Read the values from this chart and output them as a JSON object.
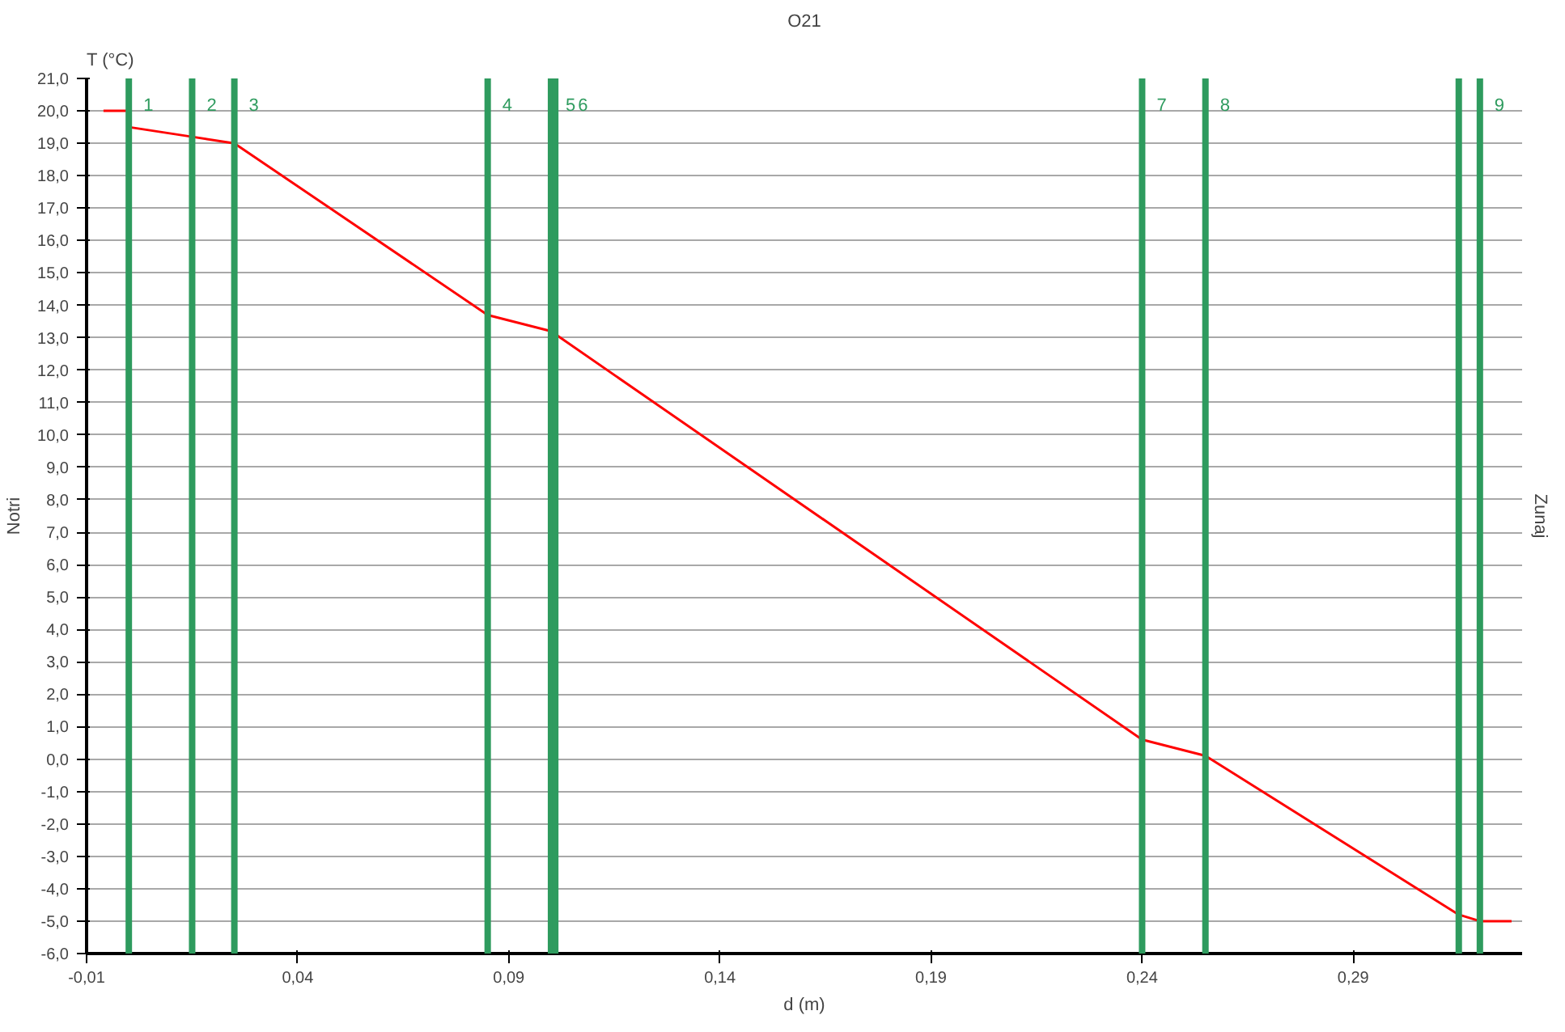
{
  "chart_data": {
    "type": "line",
    "title": "O21",
    "xlabel": "d (m)",
    "ylabel": "T (°C)",
    "x": [
      -0.006,
      0.0,
      0.0,
      0.015,
      0.025,
      0.085,
      0.1,
      0.24,
      0.255,
      0.315,
      0.32,
      0.3275
    ],
    "series": [
      {
        "color": "#ff0000",
        "values": [
          20.0,
          20.0,
          19.5,
          19.2,
          19.0,
          13.7,
          13.2,
          0.6,
          0.1,
          -4.8,
          -5.0,
          -5.0
        ]
      }
    ],
    "xlim": [
      -0.01,
      0.33
    ],
    "ylim": [
      -6,
      21
    ],
    "xticks": [
      {
        "value": -0.01,
        "label": "-0,01"
      },
      {
        "value": 0.04,
        "label": "0,04"
      },
      {
        "value": 0.09,
        "label": "0,09"
      },
      {
        "value": 0.14,
        "label": "0,14"
      },
      {
        "value": 0.19,
        "label": "0,19"
      },
      {
        "value": 0.24,
        "label": "0,24"
      },
      {
        "value": 0.29,
        "label": "0,29"
      }
    ],
    "yticks": [
      {
        "value": -6,
        "label": "-6,0"
      },
      {
        "value": -5,
        "label": "-5,0"
      },
      {
        "value": -4,
        "label": "-4,0"
      },
      {
        "value": -3,
        "label": "-3,0"
      },
      {
        "value": -2,
        "label": "-2,0"
      },
      {
        "value": -1,
        "label": "-1,0"
      },
      {
        "value": 0,
        "label": "0,0"
      },
      {
        "value": 1,
        "label": "1,0"
      },
      {
        "value": 2,
        "label": "2,0"
      },
      {
        "value": 3,
        "label": "3,0"
      },
      {
        "value": 4,
        "label": "4,0"
      },
      {
        "value": 5,
        "label": "5,0"
      },
      {
        "value": 6,
        "label": "6,0"
      },
      {
        "value": 7,
        "label": "7,0"
      },
      {
        "value": 8,
        "label": "8,0"
      },
      {
        "value": 9,
        "label": "9,0"
      },
      {
        "value": 10,
        "label": "10,0"
      },
      {
        "value": 11,
        "label": "11,0"
      },
      {
        "value": 12,
        "label": "12,0"
      },
      {
        "value": 13,
        "label": "13,0"
      },
      {
        "value": 14,
        "label": "14,0"
      },
      {
        "value": 15,
        "label": "15,0"
      },
      {
        "value": 16,
        "label": "16,0"
      },
      {
        "value": 17,
        "label": "17,0"
      },
      {
        "value": 18,
        "label": "18,0"
      },
      {
        "value": 19,
        "label": "19,0"
      },
      {
        "value": 20,
        "label": "20,0"
      },
      {
        "value": 21,
        "label": "21,0"
      }
    ],
    "grid": "y",
    "marker": "none",
    "line_style": "solid",
    "ref_lines": [
      {
        "axis": "x",
        "value": 0.0,
        "color": "#2e9b5e"
      },
      {
        "axis": "x",
        "value": 0.015,
        "color": "#2e9b5e"
      },
      {
        "axis": "x",
        "value": 0.025,
        "color": "#2e9b5e"
      },
      {
        "axis": "x",
        "value": 0.085,
        "color": "#2e9b5e"
      },
      {
        "axis": "x",
        "value": 0.1,
        "color": "#2e9b5e"
      },
      {
        "axis": "x",
        "value": 0.101,
        "color": "#2e9b5e"
      },
      {
        "axis": "x",
        "value": 0.24,
        "color": "#2e9b5e"
      },
      {
        "axis": "x",
        "value": 0.255,
        "color": "#2e9b5e"
      },
      {
        "axis": "x",
        "value": 0.32,
        "color": "#2e9b5e"
      },
      {
        "axis": "x",
        "value": 0.315,
        "color": "#2e9b5e"
      }
    ],
    "annotations": [
      "1",
      "2",
      "3",
      "4",
      "5",
      "6",
      "7",
      "8",
      "9",
      "Notri",
      "Zunaj"
    ]
  }
}
